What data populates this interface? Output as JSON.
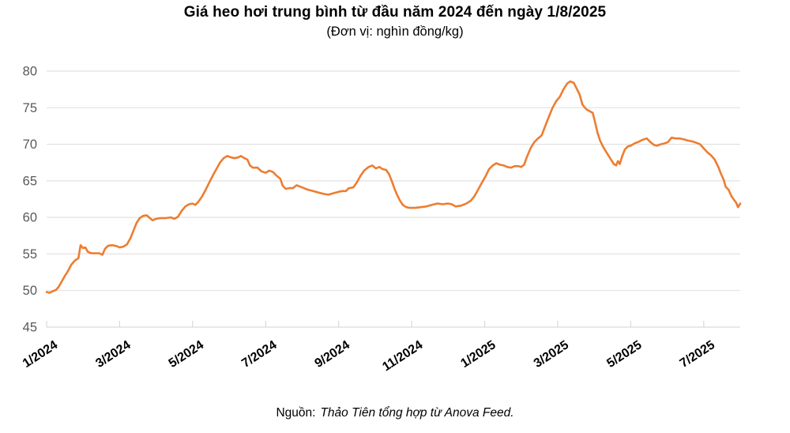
{
  "page": {
    "title": "Giá heo hơi trung bình từ đầu năm 2024 đến ngày 1/8/2025",
    "subtitle": "(Đơn vị: nghìn đồng/kg)",
    "source_label": "Nguồn:",
    "source_text": "Thảo Tiên tổng hợp từ Anova Feed."
  },
  "chart_data": {
    "type": "line",
    "title": "Giá heo hơi trung bình từ đầu năm 2024 đến ngày 1/8/2025",
    "subtitle": "(Đơn vị: nghìn đồng/kg)",
    "unit": "nghìn đồng/kg",
    "ylim": [
      45,
      80
    ],
    "y_ticks": [
      45,
      50,
      55,
      60,
      65,
      70,
      75,
      80
    ],
    "x_range_months": 19,
    "x_ticks": [
      {
        "m": 0,
        "label": "1/2024"
      },
      {
        "m": 2,
        "label": "3/2024"
      },
      {
        "m": 4,
        "label": "5/2024"
      },
      {
        "m": 6,
        "label": "7/2024"
      },
      {
        "m": 8,
        "label": "9/2024"
      },
      {
        "m": 10,
        "label": "11/2024"
      },
      {
        "m": 12,
        "label": "1/2025"
      },
      {
        "m": 14,
        "label": "3/2025"
      },
      {
        "m": 16,
        "label": "5/2025"
      },
      {
        "m": 18,
        "label": "7/2025"
      }
    ],
    "grid": "horizontal",
    "legend": "none",
    "colors": {
      "line": "#ED7D31",
      "grid": "#E2E2E2",
      "axis_line": "#D9D9D9",
      "y_tick_text": "#595959",
      "x_tick_text": "#000000"
    },
    "series": [
      {
        "name": "Giá heo hơi trung bình (nghìn đồng/kg)",
        "points": [
          [
            0,
            49.8
          ],
          [
            0.08,
            49.7
          ],
          [
            0.17,
            49.9
          ],
          [
            0.26,
            50.1
          ],
          [
            0.33,
            50.5
          ],
          [
            0.41,
            51.2
          ],
          [
            0.5,
            52.0
          ],
          [
            0.59,
            52.7
          ],
          [
            0.67,
            53.5
          ],
          [
            0.74,
            53.9
          ],
          [
            0.8,
            54.2
          ],
          [
            0.87,
            54.4
          ],
          [
            0.93,
            56.2
          ],
          [
            1.0,
            55.8
          ],
          [
            1.06,
            55.9
          ],
          [
            1.13,
            55.3
          ],
          [
            1.22,
            55.1
          ],
          [
            1.33,
            55.1
          ],
          [
            1.44,
            55.1
          ],
          [
            1.53,
            54.9
          ],
          [
            1.6,
            55.7
          ],
          [
            1.68,
            56.1
          ],
          [
            1.78,
            56.2
          ],
          [
            1.9,
            56.1
          ],
          [
            2.0,
            55.9
          ],
          [
            2.1,
            56.0
          ],
          [
            2.2,
            56.3
          ],
          [
            2.3,
            57.2
          ],
          [
            2.38,
            58.2
          ],
          [
            2.46,
            59.2
          ],
          [
            2.55,
            59.9
          ],
          [
            2.64,
            60.2
          ],
          [
            2.74,
            60.3
          ],
          [
            2.83,
            59.9
          ],
          [
            2.9,
            59.6
          ],
          [
            3.0,
            59.8
          ],
          [
            3.1,
            59.9
          ],
          [
            3.25,
            59.9
          ],
          [
            3.4,
            60.0
          ],
          [
            3.5,
            59.8
          ],
          [
            3.6,
            60.1
          ],
          [
            3.7,
            60.9
          ],
          [
            3.8,
            61.5
          ],
          [
            3.9,
            61.8
          ],
          [
            4.0,
            61.9
          ],
          [
            4.07,
            61.7
          ],
          [
            4.15,
            62.1
          ],
          [
            4.25,
            62.8
          ],
          [
            4.35,
            63.7
          ],
          [
            4.45,
            64.7
          ],
          [
            4.55,
            65.7
          ],
          [
            4.65,
            66.6
          ],
          [
            4.75,
            67.5
          ],
          [
            4.85,
            68.1
          ],
          [
            4.95,
            68.4
          ],
          [
            5.05,
            68.2
          ],
          [
            5.15,
            68.1
          ],
          [
            5.25,
            68.2
          ],
          [
            5.32,
            68.4
          ],
          [
            5.42,
            68.1
          ],
          [
            5.5,
            67.9
          ],
          [
            5.57,
            67.1
          ],
          [
            5.65,
            66.8
          ],
          [
            5.78,
            66.8
          ],
          [
            5.88,
            66.3
          ],
          [
            6.0,
            66.1
          ],
          [
            6.1,
            66.4
          ],
          [
            6.2,
            66.2
          ],
          [
            6.3,
            65.7
          ],
          [
            6.4,
            65.3
          ],
          [
            6.47,
            64.3
          ],
          [
            6.55,
            63.9
          ],
          [
            6.65,
            64.0
          ],
          [
            6.75,
            64.0
          ],
          [
            6.85,
            64.4
          ],
          [
            7.0,
            64.1
          ],
          [
            7.15,
            63.8
          ],
          [
            7.3,
            63.6
          ],
          [
            7.45,
            63.4
          ],
          [
            7.6,
            63.2
          ],
          [
            7.72,
            63.1
          ],
          [
            7.85,
            63.3
          ],
          [
            8.0,
            63.5
          ],
          [
            8.1,
            63.6
          ],
          [
            8.2,
            63.6
          ],
          [
            8.28,
            64.0
          ],
          [
            8.4,
            64.1
          ],
          [
            8.5,
            64.8
          ],
          [
            8.6,
            65.7
          ],
          [
            8.7,
            66.4
          ],
          [
            8.82,
            66.9
          ],
          [
            8.92,
            67.1
          ],
          [
            9.02,
            66.7
          ],
          [
            9.12,
            66.9
          ],
          [
            9.2,
            66.6
          ],
          [
            9.3,
            66.5
          ],
          [
            9.38,
            65.9
          ],
          [
            9.46,
            64.9
          ],
          [
            9.53,
            63.9
          ],
          [
            9.6,
            63.1
          ],
          [
            9.68,
            62.3
          ],
          [
            9.76,
            61.7
          ],
          [
            9.85,
            61.4
          ],
          [
            9.95,
            61.3
          ],
          [
            10.1,
            61.3
          ],
          [
            10.25,
            61.4
          ],
          [
            10.4,
            61.5
          ],
          [
            10.55,
            61.7
          ],
          [
            10.7,
            61.9
          ],
          [
            10.85,
            61.8
          ],
          [
            11.0,
            61.9
          ],
          [
            11.1,
            61.8
          ],
          [
            11.2,
            61.5
          ],
          [
            11.35,
            61.6
          ],
          [
            11.5,
            61.9
          ],
          [
            11.62,
            62.3
          ],
          [
            11.72,
            62.9
          ],
          [
            11.82,
            63.8
          ],
          [
            11.92,
            64.7
          ],
          [
            12.02,
            65.6
          ],
          [
            12.12,
            66.6
          ],
          [
            12.22,
            67.1
          ],
          [
            12.32,
            67.4
          ],
          [
            12.42,
            67.2
          ],
          [
            12.52,
            67.1
          ],
          [
            12.62,
            66.9
          ],
          [
            12.72,
            66.8
          ],
          [
            12.82,
            67.0
          ],
          [
            12.92,
            67.0
          ],
          [
            13.0,
            66.9
          ],
          [
            13.08,
            67.2
          ],
          [
            13.16,
            68.3
          ],
          [
            13.26,
            69.5
          ],
          [
            13.36,
            70.3
          ],
          [
            13.46,
            70.8
          ],
          [
            13.56,
            71.2
          ],
          [
            13.66,
            72.5
          ],
          [
            13.76,
            73.8
          ],
          [
            13.86,
            75.0
          ],
          [
            13.96,
            75.9
          ],
          [
            14.06,
            76.5
          ],
          [
            14.16,
            77.5
          ],
          [
            14.26,
            78.3
          ],
          [
            14.34,
            78.6
          ],
          [
            14.44,
            78.4
          ],
          [
            14.52,
            77.6
          ],
          [
            14.6,
            76.8
          ],
          [
            14.68,
            75.4
          ],
          [
            14.78,
            74.8
          ],
          [
            14.88,
            74.5
          ],
          [
            14.96,
            74.3
          ],
          [
            15.03,
            72.9
          ],
          [
            15.09,
            71.6
          ],
          [
            15.16,
            70.5
          ],
          [
            15.26,
            69.5
          ],
          [
            15.36,
            68.7
          ],
          [
            15.46,
            67.9
          ],
          [
            15.54,
            67.3
          ],
          [
            15.6,
            67.1
          ],
          [
            15.65,
            67.7
          ],
          [
            15.7,
            67.3
          ],
          [
            15.77,
            68.4
          ],
          [
            15.84,
            69.3
          ],
          [
            15.92,
            69.7
          ],
          [
            16.0,
            69.8
          ],
          [
            16.1,
            70.1
          ],
          [
            16.2,
            70.3
          ],
          [
            16.32,
            70.6
          ],
          [
            16.44,
            70.8
          ],
          [
            16.54,
            70.3
          ],
          [
            16.64,
            69.9
          ],
          [
            16.72,
            69.8
          ],
          [
            16.82,
            70.0
          ],
          [
            16.92,
            70.1
          ],
          [
            17.02,
            70.3
          ],
          [
            17.12,
            70.9
          ],
          [
            17.22,
            70.8
          ],
          [
            17.32,
            70.8
          ],
          [
            17.44,
            70.7
          ],
          [
            17.56,
            70.5
          ],
          [
            17.68,
            70.4
          ],
          [
            17.8,
            70.2
          ],
          [
            17.9,
            70.0
          ],
          [
            17.99,
            69.5
          ],
          [
            18.1,
            68.9
          ],
          [
            18.2,
            68.5
          ],
          [
            18.3,
            67.9
          ],
          [
            18.4,
            66.9
          ],
          [
            18.47,
            66.0
          ],
          [
            18.55,
            65.1
          ],
          [
            18.6,
            64.2
          ],
          [
            18.68,
            63.8
          ],
          [
            18.76,
            62.9
          ],
          [
            18.83,
            62.4
          ],
          [
            18.89,
            62.0
          ],
          [
            18.94,
            61.4
          ],
          [
            19.0,
            61.9
          ]
        ]
      }
    ]
  }
}
